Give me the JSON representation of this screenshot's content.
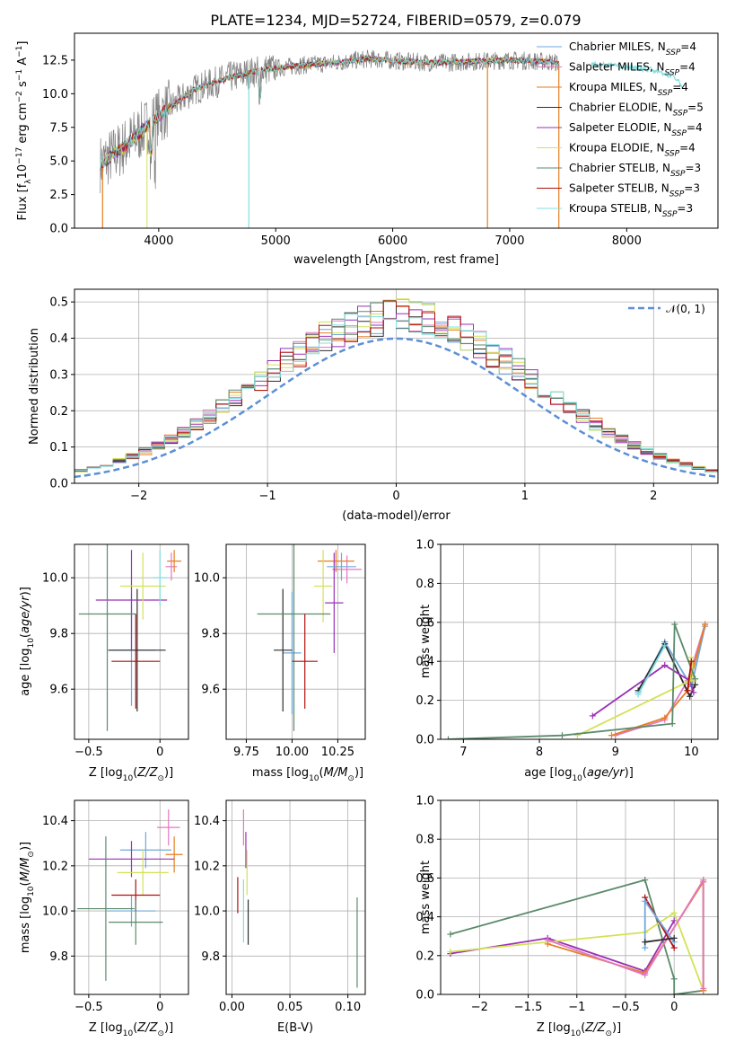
{
  "figure_title": "PLATE=1234, MJD=52724, FIBERID=0579, z=0.079",
  "colors": {
    "chabrier_miles": "#6fa8dc",
    "salpeter_miles": "#e377c2",
    "kroupa_miles": "#e67e22",
    "chabrier_elodie": "#2e2e2e",
    "salpeter_elodie": "#9b30b5",
    "kroupa_elodie": "#d4e157",
    "chabrier_stelib": "#5b8a6b",
    "salpeter_stelib": "#b01010",
    "kroupa_stelib": "#7fdfe0",
    "normal": "#5b8fd6"
  },
  "chart_data": [
    {
      "type": "line",
      "id": "spectrum",
      "title": "PLATE=1234, MJD=52724, FIBERID=0579, z=0.079",
      "xlabel": "wavelength [Angstrom, rest frame]",
      "ylabel": "Flux [f_λ10^-17 erg cm^-2 s^-1 A^-1]",
      "xlim": [
        3280,
        8780
      ],
      "ylim": [
        0,
        14.5
      ],
      "xticks": [
        4000,
        5000,
        6000,
        7000,
        8000
      ],
      "yticks": [
        0.0,
        2.5,
        5.0,
        7.5,
        10.0,
        12.5
      ],
      "legend_position": "upper-right",
      "continuum": {
        "x": [
          3500,
          3700,
          3900,
          4100,
          4300,
          4600,
          4900,
          5200,
          5500,
          5800,
          6100,
          6400,
          6700,
          7000,
          7300,
          7420
        ],
        "y": [
          4.8,
          6.0,
          7.6,
          9.0,
          10.3,
          11.2,
          11.8,
          12.1,
          12.3,
          12.6,
          12.4,
          12.3,
          12.4,
          12.5,
          12.4,
          12.3
        ]
      },
      "red_extension": {
        "x": [
          7700,
          8000,
          8200,
          8400,
          8480
        ],
        "y": [
          12.2,
          12.0,
          11.8,
          11.3,
          10.5
        ]
      },
      "series": [
        {
          "name": "Chabrier MILES, N_SSP=4",
          "color_key": "chabrier_miles"
        },
        {
          "name": "Salpeter MILES, N_SSP=4",
          "color_key": "salpeter_miles"
        },
        {
          "name": "Kroupa MILES, N_SSP=4",
          "color_key": "kroupa_miles"
        },
        {
          "name": "Chabrier ELODIE, N_SSP=5",
          "color_key": "chabrier_elodie"
        },
        {
          "name": "Salpeter ELODIE, N_SSP=4",
          "color_key": "salpeter_elodie"
        },
        {
          "name": "Kroupa ELODIE, N_SSP=4",
          "color_key": "kroupa_elodie"
        },
        {
          "name": "Chabrier STELIB, N_SSP=3",
          "color_key": "chabrier_stelib"
        },
        {
          "name": "Salpeter STELIB, N_SSP=3",
          "color_key": "salpeter_stelib"
        },
        {
          "name": "Kroupa STELIB, N_SSP=3",
          "color_key": "kroupa_stelib"
        }
      ]
    },
    {
      "type": "histogram",
      "id": "residuals",
      "xlabel": "(data-model)/error",
      "ylabel": "Normed distribution",
      "xlim": [
        -2.5,
        2.5
      ],
      "ylim": [
        0,
        0.535
      ],
      "xticks": [
        -2,
        -1,
        0,
        1,
        2
      ],
      "yticks": [
        0.0,
        0.1,
        0.2,
        0.3,
        0.4,
        0.5
      ],
      "legend": "𝒩(0, 1)",
      "legend_position": "upper-right",
      "bin_width": 0.1
    },
    {
      "type": "scatter",
      "id": "age_vs_z",
      "xlabel": "Z [log10(Z/Z⊙)]",
      "ylabel": "age [log10(age/yr)]",
      "xlim": [
        -0.6,
        0.2
      ],
      "ylim": [
        9.42,
        10.12
      ],
      "xticks": [
        -0.5,
        0.0
      ],
      "yticks": [
        9.6,
        9.8,
        10.0
      ],
      "points": [
        {
          "x": -0.2,
          "y": 9.74,
          "xerr": 0.17,
          "yerr": 0.2,
          "color_key": "chabrier_miles"
        },
        {
          "x": 0.08,
          "y": 10.04,
          "xerr": 0.04,
          "yerr": 0.05,
          "color_key": "salpeter_miles"
        },
        {
          "x": 0.1,
          "y": 10.06,
          "xerr": 0.05,
          "yerr": 0.04,
          "color_key": "kroupa_miles"
        },
        {
          "x": -0.16,
          "y": 9.74,
          "xerr": 0.2,
          "yerr": 0.22,
          "color_key": "chabrier_elodie"
        },
        {
          "x": -0.2,
          "y": 9.92,
          "xerr": 0.25,
          "yerr": 0.18,
          "color_key": "salpeter_elodie"
        },
        {
          "x": -0.12,
          "y": 9.97,
          "xerr": 0.16,
          "yerr": 0.12,
          "color_key": "kroupa_elodie"
        },
        {
          "x": -0.37,
          "y": 9.87,
          "xerr": 0.2,
          "yerr": 0.42,
          "color_key": "chabrier_stelib"
        },
        {
          "x": -0.17,
          "y": 9.7,
          "xerr": 0.17,
          "yerr": 0.17,
          "color_key": "salpeter_stelib"
        },
        {
          "x": 0.0,
          "y": 10.0,
          "xerr": 0.05,
          "yerr": 0.1,
          "color_key": "kroupa_stelib"
        }
      ]
    },
    {
      "type": "scatter",
      "id": "age_vs_mass",
      "xlabel": "mass [log10(M/M⊙)]",
      "ylabel": "",
      "xlim": [
        9.64,
        10.4
      ],
      "ylim": [
        9.42,
        10.12
      ],
      "xticks": [
        9.75,
        10.0,
        10.25
      ],
      "xtick_labels": [
        "9.75",
        "10.00",
        "10.25"
      ],
      "yticks": [
        9.6,
        9.8,
        10.0
      ],
      "points": [
        {
          "x": 10.0,
          "y": 9.73,
          "xerr": 0.05,
          "yerr": 0.22,
          "color_key": "chabrier_miles"
        },
        {
          "x": 10.3,
          "y": 10.03,
          "xerr": 0.08,
          "yerr": 0.05,
          "color_key": "salpeter_miles"
        },
        {
          "x": 10.24,
          "y": 10.06,
          "xerr": 0.1,
          "yerr": 0.04,
          "color_key": "kroupa_miles"
        },
        {
          "x": 9.95,
          "y": 9.74,
          "xerr": 0.05,
          "yerr": 0.22,
          "color_key": "chabrier_elodie"
        },
        {
          "x": 10.23,
          "y": 9.91,
          "xerr": 0.05,
          "yerr": 0.18,
          "color_key": "salpeter_elodie"
        },
        {
          "x": 10.17,
          "y": 9.97,
          "xerr": 0.05,
          "yerr": 0.13,
          "color_key": "kroupa_elodie"
        },
        {
          "x": 10.01,
          "y": 9.87,
          "xerr": 0.2,
          "yerr": 0.42,
          "color_key": "chabrier_stelib"
        },
        {
          "x": 10.07,
          "y": 9.7,
          "xerr": 0.07,
          "yerr": 0.17,
          "color_key": "salpeter_stelib"
        },
        {
          "x": 10.27,
          "y": 10.04,
          "xerr": 0.08,
          "yerr": 0.05,
          "color_key": "chabrier_miles"
        }
      ]
    },
    {
      "type": "line",
      "id": "weight_vs_age",
      "xlabel": "age [log10(age/yr)]",
      "ylabel": "mass weight",
      "xlim": [
        6.7,
        10.35
      ],
      "ylim": [
        0.0,
        1.0
      ],
      "xticks": [
        7,
        8,
        9,
        10
      ],
      "yticks": [
        0.0,
        0.2,
        0.4,
        0.6,
        0.8,
        1.0
      ],
      "series": [
        {
          "color_key": "chabrier_miles",
          "x": [
            9.3,
            9.65,
            10.0,
            10.18
          ],
          "y": [
            0.24,
            0.5,
            0.27,
            0.58
          ]
        },
        {
          "color_key": "salpeter_miles",
          "x": [
            9.0,
            9.65,
            9.95,
            10.18
          ],
          "y": [
            0.02,
            0.1,
            0.3,
            0.59
          ]
        },
        {
          "color_key": "kroupa_miles",
          "x": [
            8.95,
            9.65,
            9.95,
            10.18
          ],
          "y": [
            0.02,
            0.11,
            0.25,
            0.59
          ]
        },
        {
          "color_key": "chabrier_elodie",
          "x": [
            9.3,
            9.65,
            9.98,
            10.05
          ],
          "y": [
            0.25,
            0.49,
            0.22,
            0.28
          ]
        },
        {
          "color_key": "salpeter_elodie",
          "x": [
            8.7,
            9.65,
            9.98,
            10.03
          ],
          "y": [
            0.12,
            0.38,
            0.3,
            0.24
          ]
        },
        {
          "color_key": "kroupa_elodie",
          "x": [
            8.5,
            9.98,
            10.0,
            10.03
          ],
          "y": [
            0.02,
            0.3,
            0.42,
            0.3
          ]
        },
        {
          "color_key": "chabrier_stelib",
          "x": [
            6.8,
            8.3,
            9.75,
            9.78,
            10.05
          ],
          "y": [
            0.0,
            0.02,
            0.08,
            0.59,
            0.31
          ]
        },
        {
          "color_key": "salpeter_stelib",
          "x": [
            9.95,
            10.0
          ],
          "y": [
            0.25,
            0.4
          ]
        },
        {
          "color_key": "kroupa_stelib",
          "x": [
            9.3,
            9.65
          ],
          "y": [
            0.23,
            0.48
          ]
        }
      ]
    },
    {
      "type": "scatter",
      "id": "mass_vs_z",
      "xlabel": "Z [log10(Z/Z⊙)]",
      "ylabel": "mass [log10(M/M⊙)]",
      "xlim": [
        -0.6,
        0.2
      ],
      "ylim": [
        9.63,
        10.49
      ],
      "xticks": [
        -0.5,
        0.0
      ],
      "yticks": [
        9.8,
        10.0,
        10.2,
        10.4
      ],
      "points": [
        {
          "x": -0.2,
          "y": 10.0,
          "xerr": 0.17,
          "yerr": 0.07,
          "color_key": "chabrier_miles"
        },
        {
          "x": 0.06,
          "y": 10.37,
          "xerr": 0.08,
          "yerr": 0.08,
          "color_key": "salpeter_miles"
        },
        {
          "x": 0.1,
          "y": 10.25,
          "xerr": 0.06,
          "yerr": 0.08,
          "color_key": "kroupa_miles"
        },
        {
          "x": -0.1,
          "y": 10.27,
          "xerr": 0.18,
          "yerr": 0.08,
          "color_key": "chabrier_miles"
        },
        {
          "x": -0.2,
          "y": 10.23,
          "xerr": 0.3,
          "yerr": 0.08,
          "color_key": "salpeter_elodie"
        },
        {
          "x": -0.12,
          "y": 10.17,
          "xerr": 0.18,
          "yerr": 0.1,
          "color_key": "kroupa_elodie"
        },
        {
          "x": -0.38,
          "y": 10.01,
          "xerr": 0.2,
          "yerr": 0.32,
          "color_key": "chabrier_stelib"
        },
        {
          "x": -0.17,
          "y": 10.07,
          "xerr": 0.17,
          "yerr": 0.07,
          "color_key": "salpeter_stelib"
        },
        {
          "x": -0.17,
          "y": 9.95,
          "xerr": 0.19,
          "yerr": 0.1,
          "color_key": "chabrier_stelib"
        }
      ]
    },
    {
      "type": "scatter",
      "id": "mass_vs_ebv",
      "xlabel": "E(B-V)",
      "ylabel": "",
      "xlim": [
        -0.005,
        0.115
      ],
      "ylim": [
        9.63,
        10.49
      ],
      "xticks": [
        0.0,
        0.05,
        0.1
      ],
      "xtick_labels": [
        "0.00",
        "0.05",
        "0.10"
      ],
      "yticks": [
        9.8,
        10.0,
        10.2,
        10.4
      ],
      "points": [
        {
          "x": 0.005,
          "y": 10.07,
          "xerr": 0,
          "yerr": 0.08,
          "color_key": "salpeter_stelib"
        },
        {
          "x": 0.01,
          "y": 10.37,
          "xerr": 0,
          "yerr": 0.08,
          "color_key": "salpeter_miles"
        },
        {
          "x": 0.012,
          "y": 10.27,
          "xerr": 0,
          "yerr": 0.08,
          "color_key": "salpeter_elodie"
        },
        {
          "x": 0.013,
          "y": 10.17,
          "xerr": 0,
          "yerr": 0.1,
          "color_key": "kroupa_elodie"
        },
        {
          "x": 0.014,
          "y": 9.95,
          "xerr": 0,
          "yerr": 0.1,
          "color_key": "chabrier_elodie"
        },
        {
          "x": 0.01,
          "y": 10.0,
          "xerr": 0,
          "yerr": 0.14,
          "color_key": "kroupa_stelib"
        },
        {
          "x": 0.108,
          "y": 9.86,
          "xerr": 0,
          "yerr": 0.2,
          "color_key": "chabrier_stelib"
        }
      ]
    },
    {
      "type": "line",
      "id": "weight_vs_z",
      "xlabel": "Z [log10(Z/Z⊙)]",
      "ylabel": "mass weight",
      "xlim": [
        -2.4,
        0.45
      ],
      "ylim": [
        0.0,
        1.0
      ],
      "xticks": [
        -2.0,
        -1.5,
        -1.0,
        -0.5,
        0.0
      ],
      "yticks": [
        0.0,
        0.2,
        0.4,
        0.6,
        0.8,
        1.0
      ],
      "series": [
        {
          "color_key": "chabrier_stelib",
          "x": [
            -2.3,
            -0.3,
            0.0,
            0.0,
            0.3,
            0.3
          ],
          "y": [
            0.31,
            0.59,
            0.08,
            0.0,
            0.02,
            0.59
          ]
        },
        {
          "color_key": "salpeter_elodie",
          "x": [
            -2.3,
            -1.3,
            -0.3,
            0.0
          ],
          "y": [
            0.21,
            0.29,
            0.12,
            0.38
          ]
        },
        {
          "color_key": "kroupa_elodie",
          "x": [
            -2.3,
            -0.3,
            0.0,
            0.3
          ],
          "y": [
            0.22,
            0.32,
            0.42,
            0.02
          ]
        },
        {
          "color_key": "kroupa_miles",
          "x": [
            -1.3,
            -0.3,
            0.3,
            0.3
          ],
          "y": [
            0.26,
            0.11,
            0.58,
            0.02
          ]
        },
        {
          "color_key": "salpeter_miles",
          "x": [
            -1.3,
            -0.3,
            0.3,
            0.3
          ],
          "y": [
            0.28,
            0.1,
            0.59,
            0.03
          ]
        },
        {
          "color_key": "salpeter_stelib",
          "x": [
            -0.3,
            0.0
          ],
          "y": [
            0.5,
            0.24
          ]
        },
        {
          "color_key": "chabrier_miles",
          "x": [
            -0.3,
            -0.3,
            0.0
          ],
          "y": [
            0.24,
            0.48,
            0.27
          ]
        },
        {
          "color_key": "chabrier_elodie",
          "x": [
            -0.3,
            0.0
          ],
          "y": [
            0.27,
            0.29
          ]
        }
      ]
    }
  ]
}
